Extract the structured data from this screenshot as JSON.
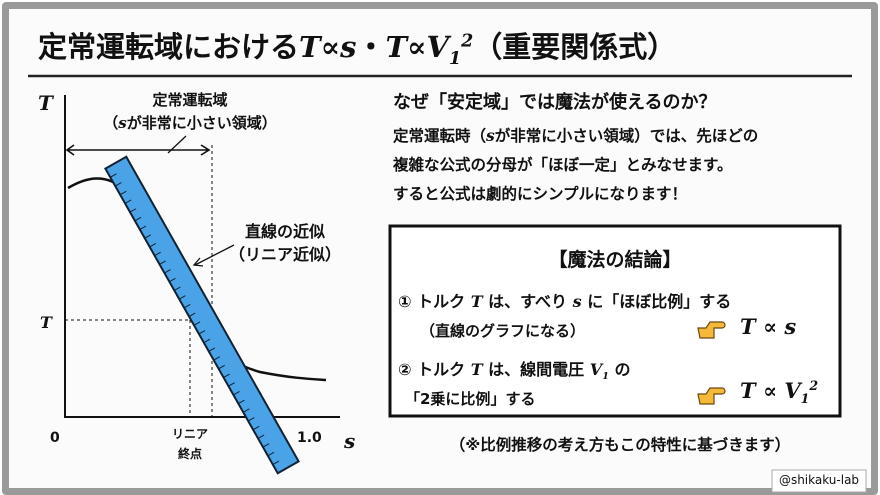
{
  "title": {
    "prefix": "定常運転域における",
    "formula1": "T∝s",
    "sep": "・",
    "formula2_base": "T∝V",
    "formula2_sub": "1",
    "formula2_sup": "2",
    "suffix": "（重要関係式）"
  },
  "graph": {
    "y_axis_label": "T",
    "x_axis_label": "s",
    "origin_label": "0",
    "x_end_label": "1.0",
    "t_marker_label": "T",
    "linear_end_label": [
      "リニア",
      "終点"
    ],
    "region_label": [
      "定常運転域",
      "（",
      "s",
      "が非常に小さい領域）"
    ],
    "approx_label": [
      "直線の近似",
      "（リニア近似）"
    ]
  },
  "question": "なぜ「安定域」では魔法が使えるのか？",
  "explanation": [
    "定常運転時（",
    "s",
    "が非常に小さい領域）では、先ほどの",
    "複雑な公式の分母が「ほぼ一定」とみなせます。",
    "すると公式は劇的にシンプルになります！"
  ],
  "box": {
    "title": "【魔法の結論】",
    "items": [
      {
        "line1": [
          "① トルク ",
          "T",
          " は、すべり ",
          "s",
          " に「ほぼ比例」する"
        ],
        "line2": "（直線のグラフになる）",
        "formula": [
          "T ∝ s"
        ]
      },
      {
        "line1": [
          "② トルク ",
          "T",
          " は、線間電圧 ",
          "V",
          "1",
          " の"
        ],
        "line2": "「2乗に比例」する",
        "formula": [
          "T ∝ V",
          "1",
          "2"
        ]
      }
    ]
  },
  "footnote": "（※比例推移の考え方もこの特性に基づきます）",
  "watermark": "@shikaku-lab"
}
